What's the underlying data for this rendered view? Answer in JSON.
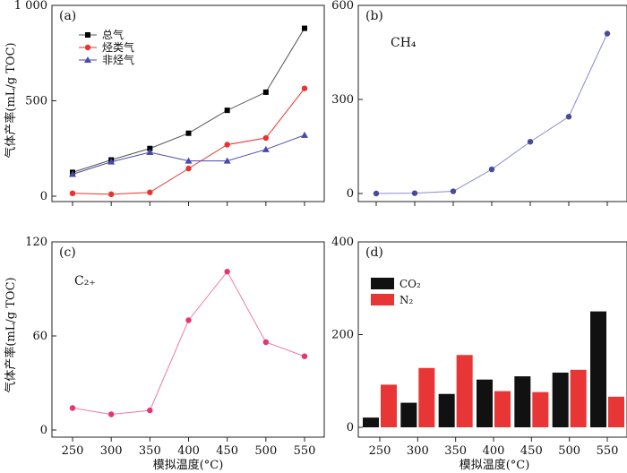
{
  "shared": {
    "xlabel": "模拟温度(°C)",
    "ylabel": "气体产率(mL/g TOC)",
    "x_ticks": [
      250,
      300,
      350,
      400,
      450,
      500,
      550
    ]
  },
  "chart_data": [
    {
      "id": "a",
      "type": "line",
      "panel_label": "(a)",
      "x": [
        250,
        300,
        350,
        400,
        450,
        500,
        550
      ],
      "ylim": [
        0,
        1000
      ],
      "y_ticks": [
        0,
        500,
        1000
      ],
      "y_tick_labels": [
        "0",
        "500",
        "1 000"
      ],
      "series": [
        {
          "name": "总气",
          "values": [
            125,
            190,
            250,
            330,
            450,
            545,
            880
          ],
          "color": "#000000",
          "marker": "square",
          "line_color": "#555555"
        },
        {
          "name": "烃类气",
          "values": [
            15,
            10,
            20,
            145,
            270,
            305,
            565
          ],
          "color": "#e8332f",
          "marker": "circle",
          "line_color": "#e8332f"
        },
        {
          "name": "非烃气",
          "values": [
            115,
            180,
            230,
            185,
            185,
            245,
            320
          ],
          "color": "#4a4aa8",
          "marker": "triangle",
          "line_color": "#4a4aa8"
        }
      ]
    },
    {
      "id": "b",
      "type": "line",
      "panel_label": "(b)",
      "annotation": "CH₄",
      "x": [
        250,
        300,
        350,
        400,
        450,
        500,
        550
      ],
      "ylim": [
        0,
        600
      ],
      "y_ticks": [
        0,
        300,
        600
      ],
      "y_tick_labels": [
        "0",
        "300",
        "600"
      ],
      "series": [
        {
          "values": [
            0,
            1,
            7,
            77,
            165,
            245,
            510
          ],
          "color": "#4a4a9a",
          "marker": "circle",
          "line_color": "#8a8ad0"
        }
      ]
    },
    {
      "id": "c",
      "type": "line",
      "panel_label": "(c)",
      "annotation": "C₂₊",
      "x": [
        250,
        300,
        350,
        400,
        450,
        500,
        550
      ],
      "ylim": [
        0,
        120
      ],
      "y_ticks": [
        0,
        60,
        120
      ],
      "y_tick_labels": [
        "0",
        "60",
        "120"
      ],
      "series": [
        {
          "values": [
            14,
            10,
            12.5,
            70,
            101,
            56,
            47
          ],
          "color": "#e8336e",
          "marker": "circle",
          "line_color": "#f07aa0"
        }
      ]
    },
    {
      "id": "d",
      "type": "bar",
      "panel_label": "(d)",
      "categories": [
        250,
        300,
        350,
        400,
        450,
        500,
        550
      ],
      "ylim": [
        0,
        400
      ],
      "y_ticks": [
        0,
        200,
        400
      ],
      "y_tick_labels": [
        "0",
        "200",
        "400"
      ],
      "series": [
        {
          "name": "CO₂",
          "values": [
            21,
            53,
            72,
            103,
            110,
            118,
            250
          ],
          "color": "#111111"
        },
        {
          "name": "N₂",
          "values": [
            92,
            128,
            156,
            78,
            76,
            124,
            66
          ],
          "color": "#e83535"
        }
      ]
    }
  ]
}
